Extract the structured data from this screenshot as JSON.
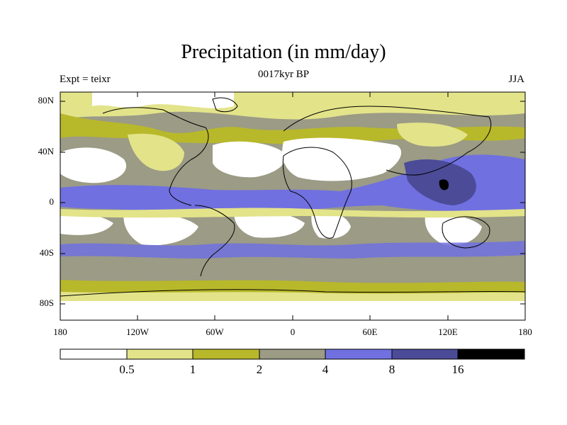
{
  "title": "Precipitation (in mm/day)",
  "subtitle": "0017kyr BP",
  "left_label": "Expt = teixr",
  "right_label": "JJA",
  "map_data": {
    "type": "filled-contour-map",
    "projection": "cylindrical-equidistant",
    "lon_range": [
      -180,
      180
    ],
    "lat_range": [
      -90,
      90
    ],
    "y_ticks": [
      "80N",
      "40N",
      "0",
      "40S",
      "80S"
    ],
    "x_ticks": [
      "180",
      "120W",
      "60W",
      "0",
      "60E",
      "120E",
      "180"
    ]
  },
  "colorbar": {
    "levels": [
      "0.5",
      "1",
      "2",
      "4",
      "8",
      "16"
    ],
    "colors": [
      "#ffffff",
      "#e3e38a",
      "#b8b82b",
      "#9b9b86",
      "#7070e0",
      "#4b4b98",
      "#000000"
    ]
  },
  "colors": {
    "dry": "#ffffff",
    "c1": "#e3e38a",
    "c2": "#b8b82b",
    "c3": "#9b9b86",
    "c4": "#7070e0",
    "c5": "#4b4b98",
    "c6": "#000000"
  }
}
